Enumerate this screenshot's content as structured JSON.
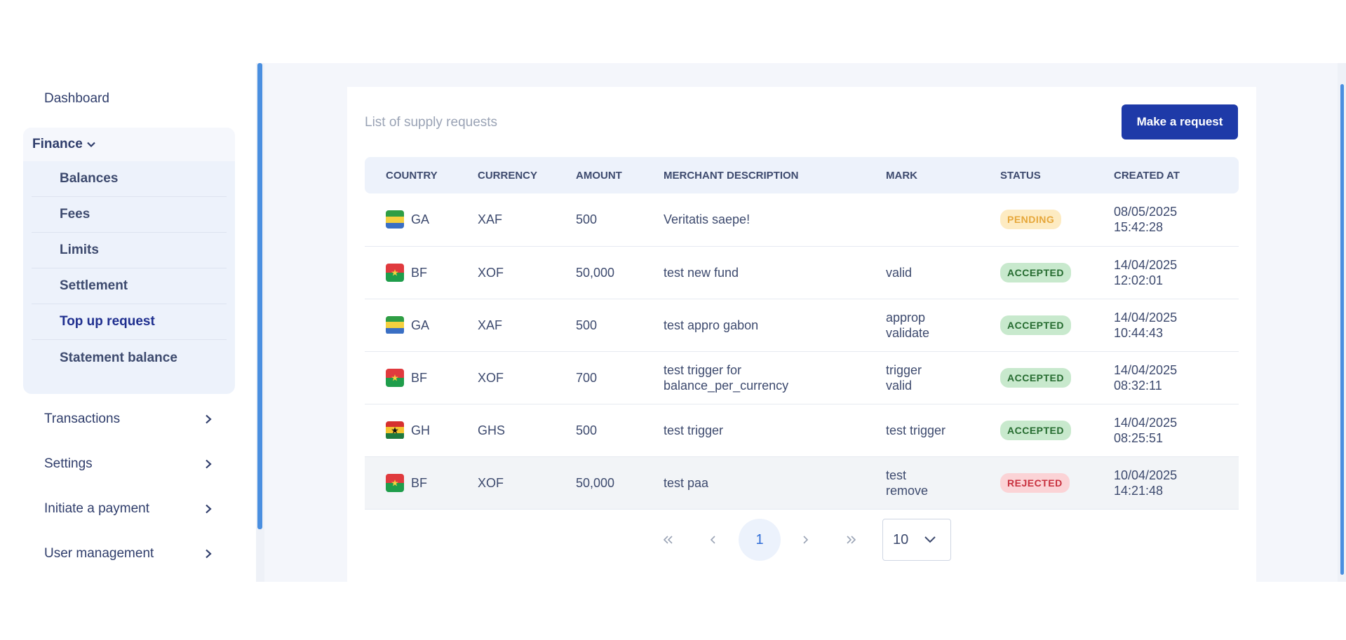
{
  "sidebar": {
    "dashboard": "Dashboard",
    "finance": {
      "label": "Finance",
      "items": [
        {
          "label": "Balances"
        },
        {
          "label": "Fees"
        },
        {
          "label": "Limits"
        },
        {
          "label": "Settlement"
        },
        {
          "label": "Top up request",
          "active": true
        },
        {
          "label": "Statement balance"
        }
      ]
    },
    "transactions": "Transactions",
    "settings": "Settings",
    "initiate_payment": "Initiate a payment",
    "user_management": "User management"
  },
  "main": {
    "title": "List of supply requests",
    "make_request_label": "Make a request",
    "columns": [
      "COUNTRY",
      "CURRENCY",
      "AMOUNT",
      "MERCHANT DESCRIPTION",
      "MARK",
      "STATUS",
      "CREATED AT"
    ],
    "rows": [
      {
        "country": "GA",
        "currency": "XAF",
        "amount": "500",
        "description": "Veritatis saepe!",
        "mark": "",
        "status": "PENDING",
        "date": "08/05/2025",
        "time": "15:42:28"
      },
      {
        "country": "BF",
        "currency": "XOF",
        "amount": "50,000",
        "description": "test new fund",
        "mark": "valid",
        "status": "ACCEPTED",
        "date": "14/04/2025",
        "time": "12:02:01"
      },
      {
        "country": "GA",
        "currency": "XAF",
        "amount": "500",
        "description": "test appro gabon",
        "mark": "approp validate",
        "status": "ACCEPTED",
        "date": "14/04/2025",
        "time": "10:44:43"
      },
      {
        "country": "BF",
        "currency": "XOF",
        "amount": "700",
        "description": "test trigger for balance_per_currency",
        "mark": "trigger valid",
        "status": "ACCEPTED",
        "date": "14/04/2025",
        "time": "08:32:11"
      },
      {
        "country": "GH",
        "currency": "GHS",
        "amount": "500",
        "description": "test trigger",
        "mark": "test trigger",
        "status": "ACCEPTED",
        "date": "14/04/2025",
        "time": "08:25:51"
      },
      {
        "country": "BF",
        "currency": "XOF",
        "amount": "50,000",
        "description": "test paa",
        "mark": "test remove",
        "status": "REJECTED",
        "date": "10/04/2025",
        "time": "14:21:48"
      }
    ],
    "pagination": {
      "current_page": "1",
      "page_size": "10"
    }
  },
  "colors": {
    "accent": "#1e3aa8",
    "scrollbar": "#4a8fe0"
  }
}
